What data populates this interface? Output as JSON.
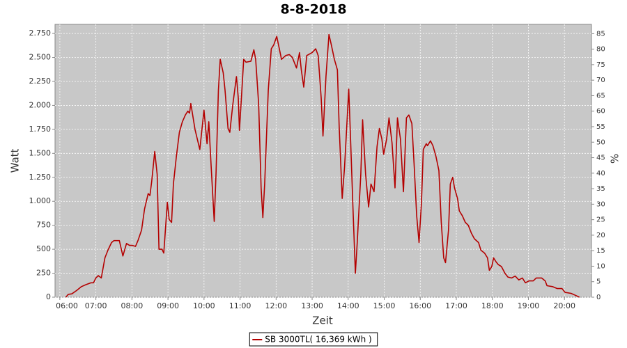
{
  "chart_data": {
    "type": "line",
    "title": "8-8-2018",
    "x_label": "Zeit",
    "y_label": "Watt",
    "y2_label": "%",
    "x": [
      370,
      374,
      380,
      388,
      396,
      403,
      412,
      416,
      420,
      424,
      429,
      435,
      440,
      446,
      450,
      459,
      465,
      471,
      476,
      481,
      486,
      490,
      496,
      501,
      507,
      510,
      513,
      518,
      522,
      525,
      530,
      533,
      539,
      542,
      546,
      549,
      554,
      559,
      564,
      569,
      573,
      576,
      578,
      585,
      593,
      600,
      605,
      608,
      612,
      617,
      620,
      624,
      627,
      632,
      635,
      640,
      643,
      648,
      654,
      657,
      659,
      663,
      666,
      670,
      678,
      683,
      686,
      691,
      695,
      698,
      701,
      707,
      712,
      716,
      721,
      724,
      729,
      736,
      742,
      747,
      754,
      759,
      762,
      766,
      771,
      780,
      786,
      790,
      795,
      798,
      803,
      808,
      812,
      817,
      822,
      825,
      830,
      834,
      838,
      841,
      844,
      848,
      852,
      855,
      861,
      864,
      869,
      874,
      878,
      883,
      888,
      892,
      896,
      899,
      904,
      908,
      913,
      918,
      922,
      927,
      932,
      937,
      941,
      946,
      950,
      954,
      958,
      962,
      965,
      970,
      972,
      977,
      981,
      986,
      991,
      995,
      999,
      1002,
      1007,
      1010,
      1014,
      1017,
      1022,
      1025,
      1030,
      1035,
      1040,
      1045,
      1050,
      1057,
      1061,
      1067,
      1072,
      1075,
      1079,
      1082,
      1086,
      1090,
      1095,
      1101,
      1106,
      1112,
      1118,
      1124,
      1130,
      1135,
      1141,
      1148,
      1153,
      1162,
      1168,
      1171,
      1180,
      1188,
      1196,
      1201,
      1211,
      1218,
      1225
    ],
    "series": [
      {
        "name": "SB 3000TL( 16,369 kWh )",
        "color": "#b40000",
        "values": [
          0,
          30,
          35,
          70,
          110,
          130,
          150,
          150,
          200,
          225,
          200,
          410,
          490,
          570,
          590,
          590,
          430,
          560,
          540,
          540,
          530,
          590,
          700,
          920,
          1080,
          1060,
          1210,
          1520,
          1280,
          500,
          500,
          460,
          990,
          810,
          780,
          1180,
          1470,
          1720,
          1830,
          1900,
          1940,
          1920,
          2020,
          1750,
          1540,
          1950,
          1600,
          1830,
          1350,
          790,
          1290,
          2160,
          2480,
          2340,
          2160,
          1760,
          1720,
          2010,
          2300,
          2080,
          1740,
          2160,
          2480,
          2450,
          2460,
          2580,
          2480,
          2010,
          1140,
          830,
          1180,
          2160,
          2590,
          2630,
          2720,
          2630,
          2480,
          2520,
          2530,
          2500,
          2390,
          2550,
          2370,
          2190,
          2520,
          2550,
          2590,
          2520,
          2080,
          1680,
          2300,
          2740,
          2630,
          2480,
          2370,
          1790,
          1030,
          1360,
          1830,
          2170,
          1650,
          920,
          250,
          560,
          1280,
          1850,
          1280,
          940,
          1180,
          1100,
          1570,
          1760,
          1650,
          1490,
          1650,
          1870,
          1610,
          1140,
          1870,
          1650,
          1100,
          1870,
          1900,
          1810,
          1360,
          850,
          570,
          990,
          1540,
          1600,
          1580,
          1630,
          1580,
          1470,
          1320,
          780,
          410,
          360,
          700,
          1180,
          1250,
          1140,
          1030,
          900,
          850,
          780,
          750,
          670,
          610,
          570,
          490,
          460,
          410,
          280,
          320,
          410,
          370,
          340,
          320,
          250,
          210,
          200,
          220,
          180,
          200,
          150,
          170,
          170,
          200,
          200,
          170,
          120,
          110,
          90,
          90,
          50,
          40,
          20,
          0
        ]
      }
    ],
    "xlim": [
      352,
      1245
    ],
    "xticks": [
      {
        "value": 360,
        "label": "06:00"
      },
      {
        "value": 420,
        "label": "07:00"
      },
      {
        "value": 480,
        "label": "08:00"
      },
      {
        "value": 540,
        "label": "09:00"
      },
      {
        "value": 600,
        "label": "10:00"
      },
      {
        "value": 660,
        "label": "11:00"
      },
      {
        "value": 720,
        "label": "12:00"
      },
      {
        "value": 780,
        "label": "13:00"
      },
      {
        "value": 840,
        "label": "14:00"
      },
      {
        "value": 900,
        "label": "15:00"
      },
      {
        "value": 960,
        "label": "16:00"
      },
      {
        "value": 1020,
        "label": "17:00"
      },
      {
        "value": 1080,
        "label": "18:00"
      },
      {
        "value": 1140,
        "label": "19:00"
      },
      {
        "value": 1200,
        "label": "20:00"
      }
    ],
    "ylim": [
      0,
      2845
    ],
    "yticks": [
      0,
      250,
      500,
      750,
      {
        "value": 1000,
        "label": "1.000"
      },
      {
        "value": 1250,
        "label": "1.250"
      },
      {
        "value": 1500,
        "label": "1.500"
      },
      {
        "value": 1750,
        "label": "1.750"
      },
      {
        "value": 2000,
        "label": "2.000"
      },
      {
        "value": 2250,
        "label": "2.250"
      },
      {
        "value": 2500,
        "label": "2.500"
      },
      {
        "value": 2750,
        "label": "2.750"
      }
    ],
    "y2lim": [
      0,
      88
    ],
    "y2ticks": [
      0,
      5,
      10,
      15,
      20,
      25,
      30,
      35,
      40,
      45,
      50,
      55,
      60,
      65,
      70,
      75,
      80,
      85
    ],
    "grid": true,
    "legend": "bottom"
  }
}
